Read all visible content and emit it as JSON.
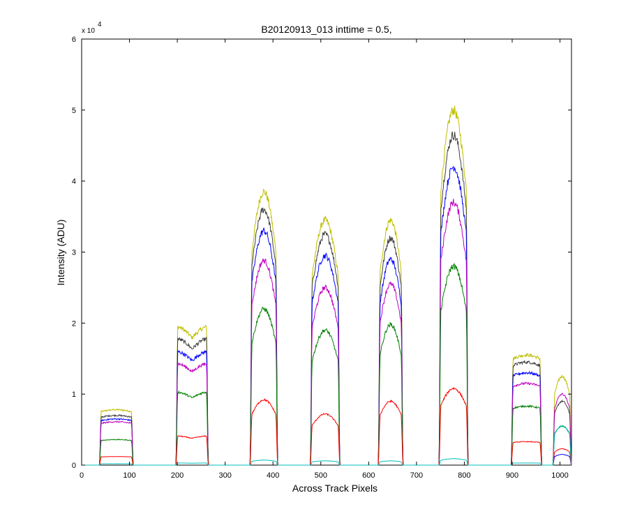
{
  "chart_data": {
    "type": "line",
    "title": "B20120913_013 inttime = 0.5,",
    "xlabel": "Across Track Pixels",
    "ylabel": "Intensity (ADU)",
    "y_multiplier": {
      "base": "x 10",
      "exponent": "4"
    },
    "xlim": [
      0,
      1024
    ],
    "ylim": [
      0,
      60000
    ],
    "xticks": [
      0,
      100,
      200,
      300,
      400,
      500,
      600,
      700,
      800,
      900,
      1000
    ],
    "yticks": [
      0,
      1,
      2,
      3,
      4,
      5,
      6
    ],
    "grid": false,
    "bands": [
      {
        "x_start": 37,
        "x_end": 108
      },
      {
        "x_start": 197,
        "x_end": 265
      },
      {
        "x_start": 352,
        "x_end": 410
      },
      {
        "x_start": 478,
        "x_end": 540
      },
      {
        "x_start": 620,
        "x_end": 672
      },
      {
        "x_start": 747,
        "x_end": 808
      },
      {
        "x_start": 898,
        "x_end": 962
      },
      {
        "x_start": 985,
        "x_end": 1024
      }
    ],
    "series": [
      {
        "color": "#BFBF00",
        "peaks": [
          7800,
          19500,
          38500,
          34500,
          34500,
          50000,
          15500,
          12500
        ]
      },
      {
        "color": "#404040",
        "peaks": [
          7000,
          17800,
          36000,
          32500,
          32000,
          46500,
          14500,
          9000
        ]
      },
      {
        "color": "#0000FF",
        "peaks": [
          6500,
          16000,
          33000,
          29500,
          29000,
          42000,
          13000,
          1500
        ]
      },
      {
        "color": "#BF00BF",
        "peaks": [
          6100,
          14300,
          28800,
          25000,
          25500,
          37000,
          11500,
          10000
        ]
      },
      {
        "color": "#008000",
        "peaks": [
          3600,
          10300,
          22000,
          19000,
          19800,
          28000,
          8300,
          5500
        ]
      },
      {
        "color": "#FF0000",
        "peaks": [
          1200,
          4100,
          9200,
          7200,
          9000,
          10800,
          3300,
          2300
        ]
      },
      {
        "color": "#00BFBF",
        "peaks": [
          200,
          300,
          700,
          600,
          600,
          900,
          300,
          5500
        ]
      }
    ]
  }
}
